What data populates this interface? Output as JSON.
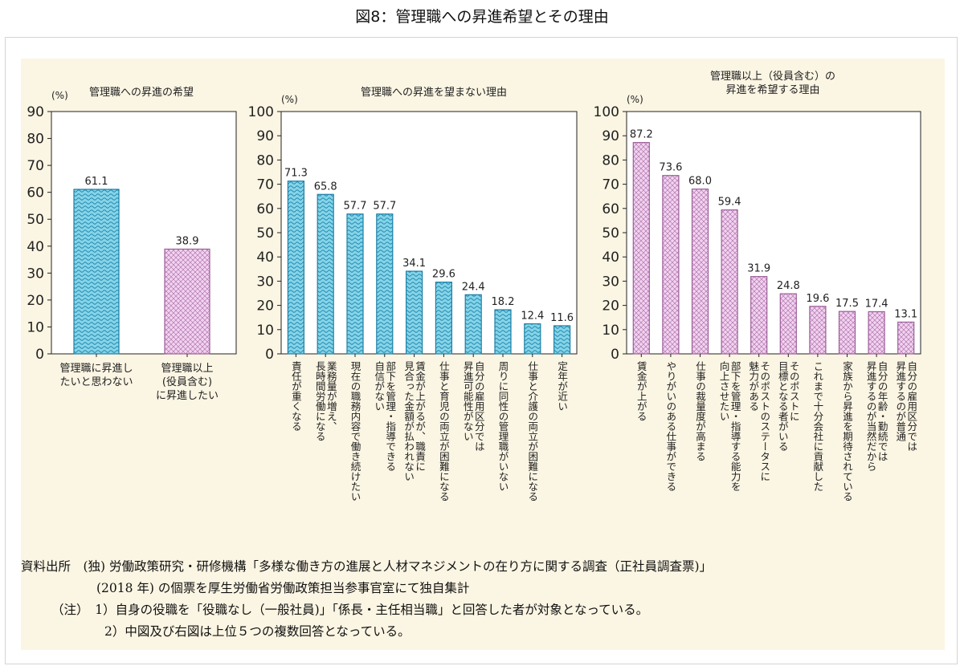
{
  "page_title": "図8：管理職への昇進希望とその理由",
  "colors": {
    "panel_bg": "#fbf5e3",
    "blue_bar": "#7fd0e6",
    "blue_stroke": "#1a7fa6",
    "pink_bar": "#efcdee",
    "pink_stroke": "#9c5c98"
  },
  "chart_data": [
    {
      "type": "bar",
      "title": "管理職への昇進の希望",
      "ylabel": "(%)",
      "ylim": [
        0,
        90
      ],
      "yticks": [
        0,
        10,
        20,
        30,
        40,
        50,
        60,
        70,
        80,
        90
      ],
      "categories": [
        "管理職に昇進し\nたいと思わない",
        "管理職以上\n(役員含む)\nに昇進したい"
      ],
      "values": [
        61.1,
        38.9
      ],
      "value_labels": [
        "61.1",
        "38.9"
      ],
      "bar_styles": [
        "blue",
        "pink"
      ]
    },
    {
      "type": "bar",
      "title": "管理職への昇進を望まない理由",
      "ylabel": "(%)",
      "ylim": [
        0,
        100
      ],
      "yticks": [
        0,
        10,
        20,
        30,
        40,
        50,
        60,
        70,
        80,
        90,
        100
      ],
      "categories": [
        "責任が重くなる",
        "業務量が増え、\n長時間労働になる",
        "現在の職務内容で働き続けたい",
        "部下を管理・指導できる\n自信がない",
        "賃金が上がるが、職責に\n見合った金額が払われない",
        "仕事と育児の両立が困難になる",
        "自分の雇用区分では\n昇進可能性がない",
        "周りに同性の管理職がいない",
        "仕事と介護の両立が困難になる",
        "定年が近い"
      ],
      "values": [
        71.3,
        65.8,
        57.7,
        57.7,
        34.1,
        29.6,
        24.4,
        18.2,
        12.4,
        11.6
      ],
      "value_labels": [
        "71.3",
        "65.8",
        "57.7",
        "57.7",
        "34.1",
        "29.6",
        "24.4",
        "18.2",
        "12.4",
        "11.6"
      ],
      "bar_style": "blue"
    },
    {
      "type": "bar",
      "title": "管理職以上（役員含む）の\n昇進を希望する理由",
      "ylabel": "(%)",
      "ylim": [
        0,
        100
      ],
      "yticks": [
        0,
        10,
        20,
        30,
        40,
        50,
        60,
        70,
        80,
        90,
        100
      ],
      "categories": [
        "賃金が上がる",
        "やりがいのある仕事ができる",
        "仕事の裁量度が高まる",
        "部下を管理・指導する能力を\n向上させたい",
        "そのポストのステータスに\n魅力がある",
        "そのポストに\n目標となる者がいる",
        "これまで十分会社に貢献した",
        "家族から昇進を期待されている",
        "自分の年齢・勤続では\n昇進するのが当然だから",
        "自分の雇用区分では\n昇進するのが普通"
      ],
      "values": [
        87.2,
        73.6,
        68.0,
        59.4,
        31.9,
        24.8,
        19.6,
        17.5,
        17.4,
        13.1
      ],
      "value_labels": [
        "87.2",
        "73.6",
        "68.0",
        "59.4",
        "31.9",
        "24.8",
        "19.6",
        "17.5",
        "17.4",
        "13.1"
      ],
      "bar_style": "pink"
    }
  ],
  "notes": {
    "source_line1": "資料出所　(独) 労働政策研究・研修機構「多様な働き方の進展と人材マネジメントの在り方に関する調査（正社員調査票)」",
    "source_line2": "(2018 年) の個票を厚生労働省労働政策担当参事官室にて独自集計",
    "note1": "（注）　1）自身の役職を「役職なし（一般社員)」「係長・主任相当職」と回答した者が対象となっている。",
    "note2": "2）中図及び右図は上位５つの複数回答となっている。"
  }
}
